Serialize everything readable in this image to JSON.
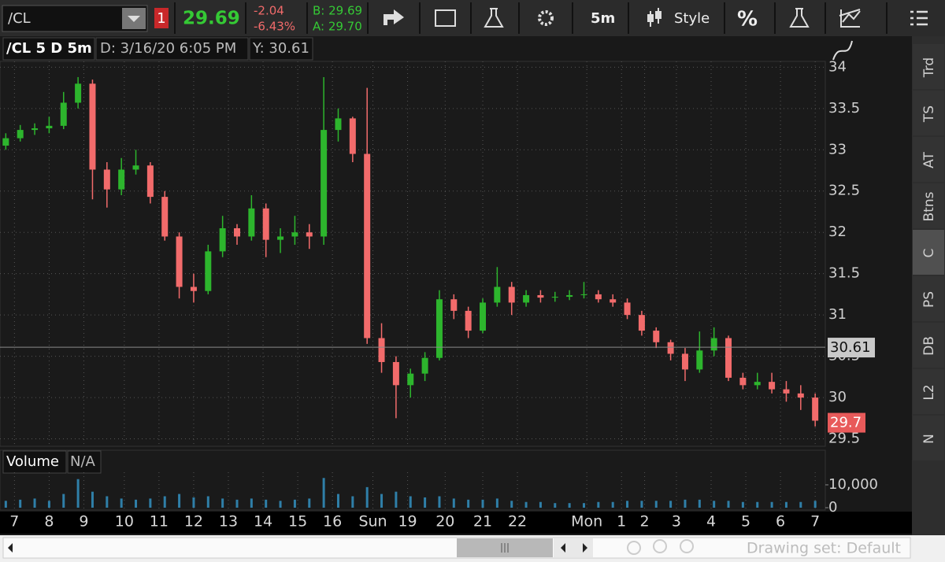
{
  "toolbar": {
    "symbol": "/CL",
    "alert_count": "1",
    "last": "29.69",
    "change": "-2.04",
    "change_pct": "-6.43%",
    "bid": "B: 29.69",
    "ask": "A: 29.70",
    "interval": "5m",
    "style": "Style",
    "percent": "%"
  },
  "header": {
    "title": "/CL 5 D 5m",
    "date": "D: 3/16/20 6:05 PM",
    "y": "Y: 30.61"
  },
  "chart_data": {
    "type": "candlestick",
    "x": [
      2,
      7,
      12,
      17,
      22,
      27,
      32,
      37,
      42,
      47,
      52,
      57,
      62,
      67,
      72,
      77,
      82,
      87,
      92,
      97,
      102,
      107,
      112,
      117,
      122,
      127,
      132,
      137,
      142,
      147,
      152,
      157,
      162,
      167,
      172,
      177,
      182,
      187,
      192,
      197,
      202,
      207,
      212,
      217,
      222,
      227,
      232,
      237,
      242,
      247,
      252,
      257,
      262,
      267,
      272,
      277,
      282
    ],
    "candles": [
      [
        33.05,
        33.2,
        33.0,
        33.14
      ],
      [
        33.14,
        33.3,
        33.1,
        33.24
      ],
      [
        33.24,
        33.32,
        33.18,
        33.26
      ],
      [
        33.26,
        33.4,
        33.2,
        33.29
      ],
      [
        33.29,
        33.7,
        33.25,
        33.57
      ],
      [
        33.57,
        33.88,
        33.5,
        33.8
      ],
      [
        33.8,
        33.85,
        32.4,
        32.76
      ],
      [
        32.76,
        32.85,
        32.3,
        32.52
      ],
      [
        32.52,
        32.9,
        32.45,
        32.76
      ],
      [
        32.76,
        33.0,
        32.7,
        32.81
      ],
      [
        32.81,
        32.85,
        32.35,
        32.43
      ],
      [
        32.43,
        32.5,
        31.9,
        31.95
      ],
      [
        31.95,
        32.0,
        31.2,
        31.34
      ],
      [
        31.34,
        31.5,
        31.15,
        31.29
      ],
      [
        31.29,
        31.85,
        31.25,
        31.77
      ],
      [
        31.77,
        32.2,
        31.7,
        32.05
      ],
      [
        32.05,
        32.1,
        31.85,
        31.95
      ],
      [
        31.95,
        32.45,
        31.9,
        32.29
      ],
      [
        32.29,
        32.35,
        31.7,
        31.91
      ],
      [
        31.91,
        32.05,
        31.75,
        31.95
      ],
      [
        31.95,
        32.2,
        31.85,
        32.0
      ],
      [
        32.0,
        32.1,
        31.8,
        31.95
      ],
      [
        31.95,
        33.88,
        31.85,
        33.24
      ],
      [
        33.24,
        33.5,
        33.1,
        33.38
      ],
      [
        33.38,
        33.4,
        32.85,
        32.95
      ],
      [
        32.95,
        33.75,
        30.65,
        30.72
      ],
      [
        30.72,
        30.9,
        30.3,
        30.43
      ],
      [
        30.43,
        30.5,
        29.75,
        30.15
      ],
      [
        30.15,
        30.35,
        30.0,
        30.29
      ],
      [
        30.29,
        30.55,
        30.2,
        30.48
      ],
      [
        30.48,
        31.3,
        30.45,
        31.19
      ],
      [
        31.19,
        31.25,
        30.95,
        31.05
      ],
      [
        31.05,
        31.1,
        30.72,
        30.81
      ],
      [
        30.81,
        31.2,
        30.78,
        31.15
      ],
      [
        31.15,
        31.58,
        31.1,
        31.34
      ],
      [
        31.34,
        31.4,
        31.0,
        31.15
      ],
      [
        31.15,
        31.3,
        31.1,
        31.24
      ],
      [
        31.24,
        31.3,
        31.15,
        31.21
      ],
      [
        31.21,
        31.28,
        31.16,
        31.22
      ],
      [
        31.22,
        31.3,
        31.18,
        31.24
      ],
      [
        31.24,
        31.4,
        31.2,
        31.25
      ],
      [
        31.25,
        31.3,
        31.15,
        31.19
      ],
      [
        31.19,
        31.25,
        31.1,
        31.15
      ],
      [
        31.15,
        31.2,
        30.95,
        31.0
      ],
      [
        31.0,
        31.05,
        30.75,
        30.81
      ],
      [
        30.81,
        30.85,
        30.6,
        30.67
      ],
      [
        30.67,
        30.7,
        30.45,
        30.53
      ],
      [
        30.53,
        30.6,
        30.2,
        30.34
      ],
      [
        30.34,
        30.8,
        30.3,
        30.57
      ],
      [
        30.57,
        30.85,
        30.5,
        30.72
      ],
      [
        30.72,
        30.75,
        30.2,
        30.24
      ],
      [
        30.24,
        30.3,
        30.1,
        30.15
      ],
      [
        30.15,
        30.3,
        30.1,
        30.19
      ],
      [
        30.19,
        30.3,
        30.05,
        30.1
      ],
      [
        30.1,
        30.2,
        29.95,
        30.05
      ],
      [
        30.05,
        30.15,
        29.85,
        30.0
      ],
      [
        30.0,
        30.05,
        29.65,
        29.72
      ]
    ],
    "colors": {
      "up": "#2db52d",
      "down": "#f26b6b"
    },
    "xlim": [
      0,
      285.5
    ],
    "xticks": [
      {
        "value": 5,
        "label": "7"
      },
      {
        "value": 17,
        "label": "8"
      },
      {
        "value": 29,
        "label": "9"
      },
      {
        "value": 43,
        "label": "10"
      },
      {
        "value": 55,
        "label": "11"
      },
      {
        "value": 67,
        "label": "12"
      },
      {
        "value": 79,
        "label": "13"
      },
      {
        "value": 91,
        "label": "14"
      },
      {
        "value": 103,
        "label": "15"
      },
      {
        "value": 115,
        "label": "16"
      },
      {
        "value": 129,
        "label": "Sun"
      },
      {
        "value": 141,
        "label": "19"
      },
      {
        "value": 154,
        "label": "20"
      },
      {
        "value": 167,
        "label": "21"
      },
      {
        "value": 179,
        "label": "22"
      },
      {
        "value": 203,
        "label": "Mon"
      },
      {
        "value": 215,
        "label": "1"
      },
      {
        "value": 223,
        "label": "2"
      },
      {
        "value": 234,
        "label": "3"
      },
      {
        "value": 246,
        "label": "4"
      },
      {
        "value": 258,
        "label": "5"
      },
      {
        "value": 270,
        "label": "6"
      },
      {
        "value": 282,
        "label": "7"
      }
    ],
    "ylim": [
      29.41,
      34.07
    ],
    "yticks": [
      29.5,
      30,
      30.5,
      31,
      31.5,
      32,
      32.5,
      33,
      33.5,
      34
    ],
    "grid": true,
    "crosshair": 30.61,
    "last_price": 29.7,
    "volume": {
      "title": "Volume",
      "status": "N/A",
      "color": "#2f7fa8",
      "values": [
        3000,
        3500,
        4000,
        3000,
        6000,
        12500,
        7000,
        5000,
        4000,
        3500,
        4000,
        5000,
        6000,
        4500,
        5000,
        4000,
        3500,
        4000,
        3500,
        3000,
        3500,
        4000,
        13000,
        6000,
        5000,
        9000,
        6000,
        7000,
        5000,
        4500,
        5000,
        4000,
        3500,
        3500,
        4000,
        3000,
        2500,
        2500,
        2000,
        2000,
        2000,
        2500,
        2500,
        3000,
        3000,
        3000,
        3000,
        3500,
        3500,
        3000,
        3000,
        2500,
        2500,
        2500,
        2500,
        2500,
        3000
      ],
      "ylim": [
        0,
        15500
      ],
      "yticks": [
        0,
        {
          "value": 10000,
          "label": "10,000"
        }
      ]
    }
  },
  "side_tabs": [
    "Trd",
    "TS",
    "AT",
    "Btns",
    "C",
    "PS",
    "DB",
    "L2",
    "N"
  ],
  "footer": {
    "drawing_set": "Drawing set: Default"
  }
}
